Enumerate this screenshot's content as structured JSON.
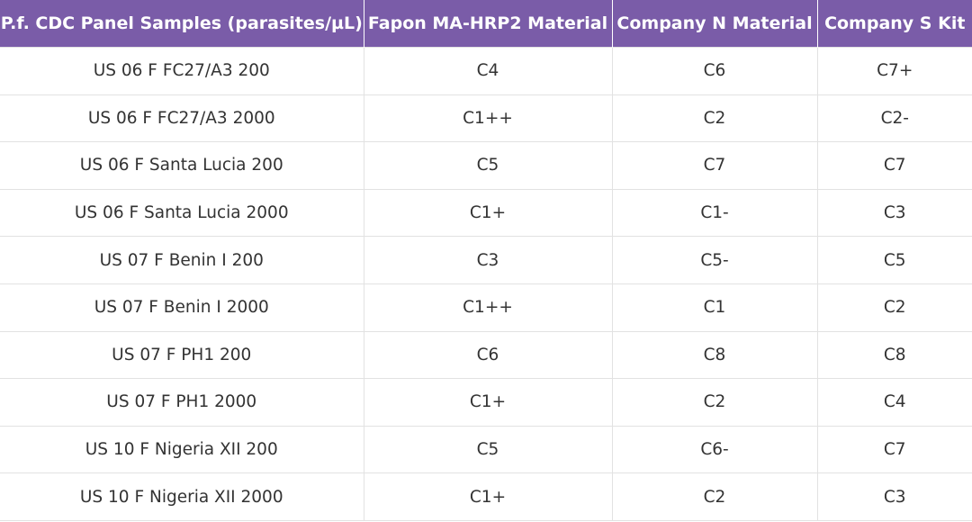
{
  "table": {
    "header": [
      "P.f. CDC Panel Samples (parasites/µL)",
      "Fapon MA-HRP2 Material",
      "Company N Material",
      "Company S Kit"
    ],
    "rows": [
      [
        "US 06 F FC27/A3 200",
        "C4",
        "C6",
        "C7+"
      ],
      [
        "US 06 F FC27/A3 2000",
        "C1++",
        "C2",
        "C2-"
      ],
      [
        "US 06 F Santa Lucia 200",
        "C5",
        "C7",
        "C7"
      ],
      [
        "US 06 F Santa Lucia 2000",
        "C1+",
        "C1-",
        "C3"
      ],
      [
        "US 07 F Benin I 200",
        "C3",
        "C5-",
        "C5"
      ],
      [
        "US 07 F Benin I 2000",
        "C1++",
        "C1",
        "C2"
      ],
      [
        "US 07 F PH1 200",
        "C6",
        "C8",
        "C8"
      ],
      [
        "US 07 F PH1 2000",
        "C1+",
        "C2",
        "C4"
      ],
      [
        "US 10 F Nigeria XII 200",
        "C5",
        "C6-",
        "C7"
      ],
      [
        "US 10 F Nigeria XII 2000",
        "C1+",
        "C2",
        "C3"
      ]
    ]
  }
}
